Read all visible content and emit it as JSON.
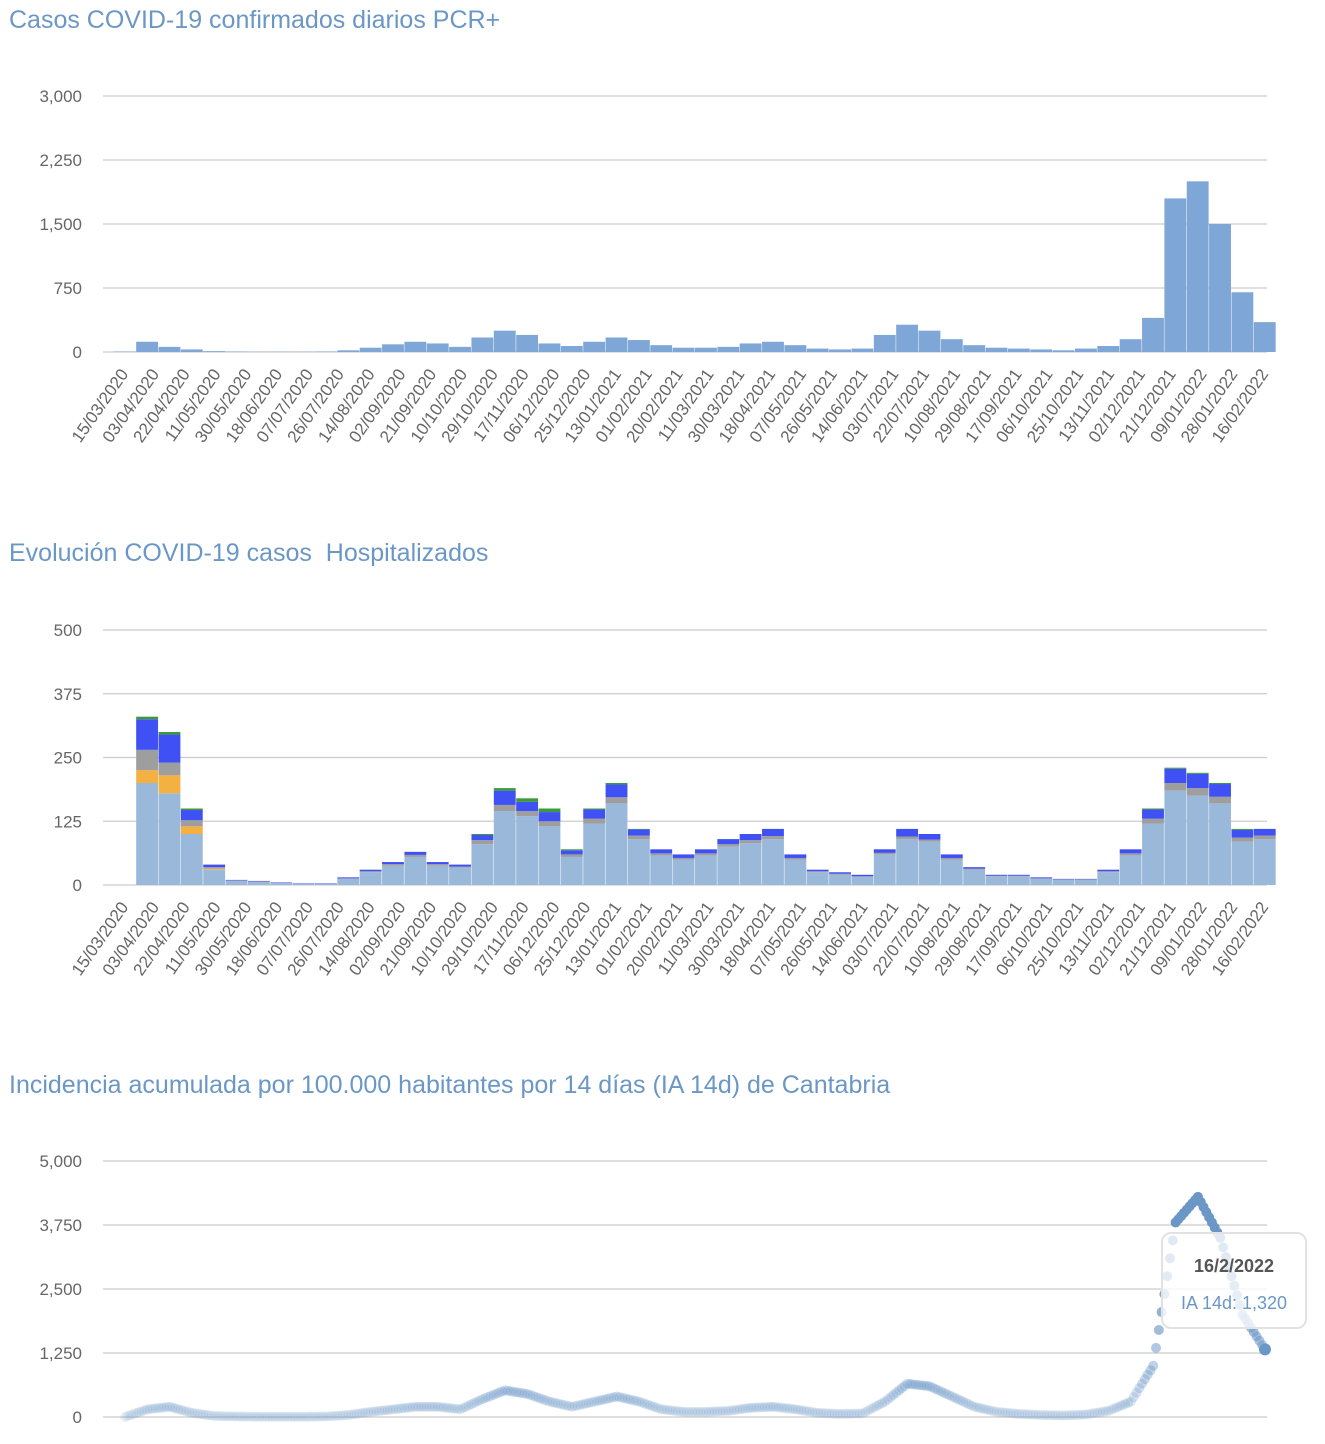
{
  "chart_data": [
    {
      "type": "bar",
      "title": "Casos COVID-19 confirmados diarios PCR+",
      "ylim": [
        0,
        3000
      ],
      "yticks": [
        "0",
        "750",
        "1,500",
        "2,250",
        "3,000"
      ],
      "grid": true,
      "colors": [
        "#7ea6d6"
      ],
      "x_tick_labels": [
        "15/03/2020",
        "03/04/2020",
        "22/04/2020",
        "11/05/2020",
        "30/05/2020",
        "18/06/2020",
        "07/07/2020",
        "26/07/2020",
        "14/08/2020",
        "02/09/2020",
        "21/09/2020",
        "10/10/2020",
        "29/10/2020",
        "17/11/2020",
        "06/12/2020",
        "25/12/2020",
        "13/01/2021",
        "01/02/2021",
        "20/02/2021",
        "11/03/2021",
        "30/03/2021",
        "18/04/2021",
        "07/05/2021",
        "26/05/2021",
        "14/06/2021",
        "03/07/2021",
        "22/07/2021",
        "10/08/2021",
        "29/08/2021",
        "17/09/2021",
        "06/10/2021",
        "25/10/2021",
        "13/11/2021",
        "02/12/2021",
        "21/12/2021",
        "09/01/2022",
        "28/01/2022",
        "16/02/2022"
      ],
      "series": [
        {
          "values": [
            5,
            120,
            60,
            30,
            10,
            5,
            3,
            3,
            3,
            5,
            20,
            50,
            90,
            120,
            100,
            60,
            170,
            250,
            200,
            100,
            70,
            120,
            170,
            140,
            80,
            50,
            50,
            60,
            100,
            120,
            80,
            40,
            30,
            40,
            200,
            320,
            250,
            150,
            80,
            50,
            40,
            30,
            20,
            40,
            70,
            150,
            400,
            1800,
            2000,
            1500,
            700,
            350
          ]
        }
      ]
    },
    {
      "type": "bar",
      "stacked": true,
      "title": "Evolución COVID-19 casos  Hospitalizados",
      "ylim": [
        0,
        500
      ],
      "yticks": [
        "0",
        "125",
        "250",
        "375",
        "500"
      ],
      "grid": true,
      "colors": [
        "#9ab9da",
        "#f5b042",
        "#9e9e9e",
        "#3f51f5",
        "#3c9a3c"
      ],
      "x_tick_labels": [
        "15/03/2020",
        "03/04/2020",
        "22/04/2020",
        "11/05/2020",
        "30/05/2020",
        "18/06/2020",
        "07/07/2020",
        "26/07/2020",
        "14/08/2020",
        "02/09/2020",
        "21/09/2020",
        "10/10/2020",
        "29/10/2020",
        "17/11/2020",
        "06/12/2020",
        "25/12/2020",
        "13/01/2021",
        "01/02/2021",
        "20/02/2021",
        "11/03/2021",
        "30/03/2021",
        "18/04/2021",
        "07/05/2021",
        "26/05/2021",
        "14/06/2021",
        "03/07/2021",
        "22/07/2021",
        "10/08/2021",
        "29/08/2021",
        "17/09/2021",
        "06/10/2021",
        "25/10/2021",
        "13/11/2021",
        "02/12/2021",
        "21/12/2021",
        "09/01/2022",
        "28/01/2022",
        "16/02/2022"
      ],
      "series": [
        {
          "values": [
            0,
            200,
            180,
            100,
            30,
            8,
            6,
            4,
            2,
            2,
            12,
            25,
            38,
            55,
            38,
            34,
            80,
            145,
            135,
            115,
            55,
            120,
            160,
            90,
            58,
            50,
            58,
            75,
            82,
            90,
            50,
            25,
            20,
            16,
            60,
            90,
            85,
            50,
            30,
            17,
            17,
            12,
            10,
            10,
            25,
            58,
            120,
            185,
            175,
            160,
            85,
            90
          ]
        },
        {
          "values": [
            0,
            25,
            35,
            15,
            2,
            0,
            0,
            0,
            0,
            0,
            0,
            0,
            0,
            0,
            0,
            0,
            0,
            0,
            0,
            0,
            0,
            0,
            0,
            0,
            0,
            0,
            0,
            0,
            0,
            0,
            0,
            0,
            0,
            0,
            0,
            0,
            0,
            0,
            0,
            0,
            0,
            0,
            0,
            0,
            0,
            0,
            0,
            0,
            0,
            0,
            0,
            0
          ]
        },
        {
          "values": [
            0,
            40,
            25,
            12,
            3,
            1,
            1,
            0,
            0,
            0,
            1,
            2,
            3,
            4,
            3,
            2,
            8,
            12,
            10,
            10,
            5,
            10,
            12,
            7,
            4,
            3,
            4,
            5,
            6,
            6,
            3,
            2,
            2,
            1,
            3,
            5,
            4,
            3,
            2,
            1,
            1,
            1,
            1,
            1,
            2,
            4,
            10,
            15,
            15,
            13,
            8,
            7
          ]
        },
        {
          "values": [
            0,
            60,
            55,
            20,
            5,
            1,
            1,
            1,
            1,
            1,
            2,
            3,
            4,
            6,
            4,
            4,
            10,
            28,
            18,
            18,
            8,
            18,
            25,
            12,
            8,
            7,
            8,
            10,
            12,
            14,
            7,
            3,
            3,
            3,
            7,
            15,
            11,
            7,
            3,
            2,
            2,
            2,
            1,
            1,
            3,
            8,
            18,
            28,
            28,
            25,
            15,
            13
          ]
        },
        {
          "values": [
            0,
            5,
            5,
            3,
            0,
            0,
            0,
            0,
            0,
            0,
            0,
            0,
            0,
            0,
            0,
            0,
            2,
            5,
            7,
            7,
            2,
            2,
            3,
            1,
            0,
            0,
            0,
            0,
            0,
            0,
            0,
            0,
            0,
            0,
            0,
            0,
            0,
            0,
            0,
            0,
            0,
            0,
            0,
            0,
            0,
            0,
            2,
            2,
            2,
            2,
            2,
            0
          ]
        }
      ]
    },
    {
      "type": "scatter",
      "title": "Incidencia acumulada por 100.000 habitantes por 14 días (IA 14d) de Cantabria",
      "ylim": [
        0,
        5000
      ],
      "yticks": [
        "0",
        "1,250",
        "2,500",
        "3,750",
        "5,000"
      ],
      "grid": true,
      "colors": [
        "#6b97c7"
      ],
      "series": [
        {
          "values": [
            0,
            150,
            200,
            80,
            20,
            10,
            5,
            5,
            5,
            10,
            40,
            100,
            150,
            200,
            200,
            150,
            350,
            520,
            450,
            300,
            200,
            300,
            400,
            300,
            150,
            100,
            100,
            120,
            180,
            200,
            150,
            80,
            60,
            70,
            300,
            650,
            600,
            400,
            200,
            100,
            60,
            40,
            30,
            50,
            120,
            300,
            1000,
            3800,
            4300,
            3500,
            2000,
            1320
          ]
        }
      ],
      "tooltip": {
        "date": "16/2/2022",
        "label": "IA 14d: 1,320"
      }
    }
  ]
}
